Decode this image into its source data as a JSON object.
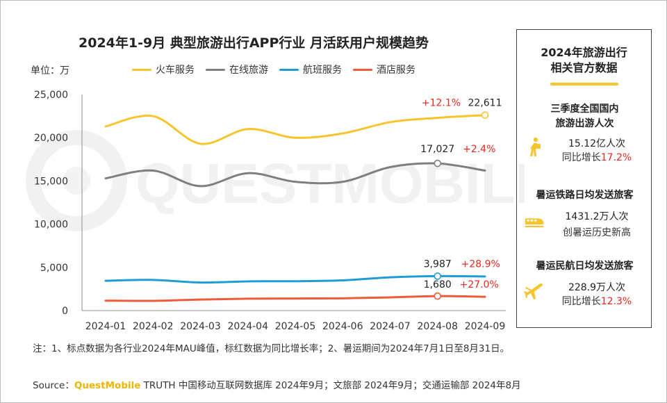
{
  "title": "2024年1-9月 典型旅游出行APP行业 月活跃用户规模趋势",
  "unit_label": "单位：万",
  "colors": {
    "train": "#f7c42d",
    "online": "#7f7f7f",
    "flight": "#1f9bd6",
    "hotel": "#ef5a3a",
    "growth_red": "#e8271f",
    "accent": "#f7c42d"
  },
  "chart_data": {
    "type": "line",
    "categories": [
      "2024-01",
      "2024-02",
      "2024-03",
      "2024-04",
      "2024-05",
      "2024-06",
      "2024-07",
      "2024-08",
      "2024-09"
    ],
    "ylim": [
      0,
      25000
    ],
    "yticks": [
      0,
      5000,
      10000,
      15000,
      20000,
      25000
    ],
    "ytick_labels": [
      "0",
      "5,000",
      "10,000",
      "15,000",
      "20,000",
      "25,000"
    ],
    "legend_position": "top",
    "series": [
      {
        "name": "火车服务",
        "key": "train",
        "values": [
          21300,
          22500,
          19300,
          21000,
          20000,
          20500,
          21800,
          22300,
          22611
        ]
      },
      {
        "name": "在线旅游",
        "key": "online",
        "values": [
          15300,
          16200,
          14400,
          15900,
          14900,
          14900,
          16600,
          17027,
          16200
        ]
      },
      {
        "name": "航班服务",
        "key": "flight",
        "values": [
          3450,
          3550,
          3250,
          3380,
          3400,
          3500,
          3850,
          3987,
          3950
        ]
      },
      {
        "name": "酒店服务",
        "key": "hotel",
        "values": [
          1150,
          1130,
          1280,
          1380,
          1400,
          1420,
          1530,
          1680,
          1600
        ]
      }
    ],
    "annotations": [
      {
        "series": "train",
        "index": 8,
        "value_label": "22,611",
        "growth": "+12.1%"
      },
      {
        "series": "online",
        "index": 7,
        "value_label": "17,027",
        "growth": "+2.4%"
      },
      {
        "series": "flight",
        "index": 7,
        "value_label": "3,987",
        "growth": "+28.9%"
      },
      {
        "series": "hotel",
        "index": 7,
        "value_label": "1,680",
        "growth": "+27.0%"
      }
    ]
  },
  "side_panel": {
    "title_line1": "2024年旅游出行",
    "title_line2": "相关官方数据",
    "stats": [
      {
        "head1": "三季度全国国内",
        "head2": "旅游出游人次",
        "icon": "walking-person-icon",
        "value1": "15.12亿人次",
        "value2_prefix": "同比增长",
        "value2_highlight": "17.2%"
      },
      {
        "head1": "暑运铁路日均发送旅客",
        "icon": "train-icon",
        "value1": "1431.2万人次",
        "value2_prefix": "创暑运历史新高",
        "value2_highlight": ""
      },
      {
        "head1": "暑运民航日均发送旅客",
        "icon": "airplane-icon",
        "value1": "228.9万人次",
        "value2_prefix": "同比增长",
        "value2_highlight": "12.3%"
      }
    ]
  },
  "watermark_text": "QUESTMOBILE",
  "note": "注：1、标点数据为各行业2024年MAU峰值，标红数据为同比增长率；2、暑运期间为2024年7月1日至8月31日。",
  "source": {
    "prefix": "Source：",
    "brand": "QuestMobile",
    "rest": " TRUTH 中国移动互联网数据库 2024年9月；文旅部 2024年9月；交通运输部 2024年8月"
  }
}
